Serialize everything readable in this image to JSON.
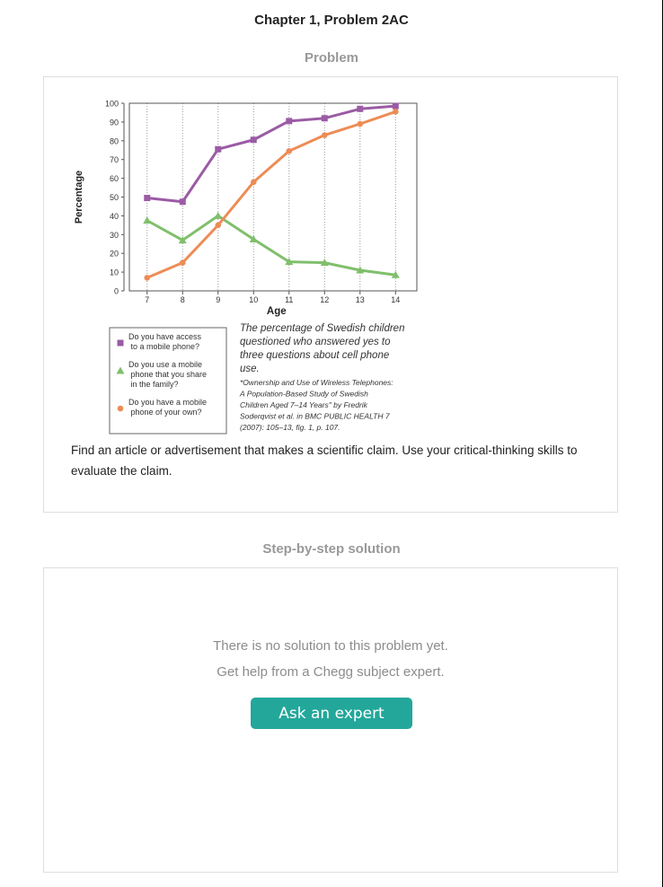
{
  "page": {
    "title": "Chapter 1, Problem 2AC",
    "problem_heading": "Problem",
    "solution_heading": "Step-by-step solution",
    "problem_text": "Find an article or advertisement that makes a scientific claim. Use your critical-thinking skills to evaluate the claim.",
    "no_solution_text": "There is no solution to this problem yet.",
    "get_help_text": "Get help from a Chegg subject expert.",
    "ask_button_label": "Ask an expert"
  },
  "colors": {
    "accent": "#23a79b",
    "series_access": "#9b5ba5",
    "series_share": "#80bf6c",
    "series_own": "#ed8c55"
  },
  "chart_data": {
    "type": "line",
    "xlabel": "Age",
    "ylabel": "Percentage",
    "x": [
      7,
      8,
      9,
      10,
      11,
      12,
      13,
      14
    ],
    "xlim": [
      6.5,
      14.6
    ],
    "ylim": [
      0,
      100
    ],
    "yticks": [
      0,
      10,
      20,
      30,
      40,
      50,
      60,
      70,
      80,
      90,
      100
    ],
    "grid": "vertical dotted lines at each age",
    "legend_position": "bottom-left",
    "series": [
      {
        "name": "Do you have access to a mobile phone?",
        "marker": "square",
        "color": "#9b5ba5",
        "values": [
          49.5,
          47.5,
          75.5,
          80.5,
          90.5,
          92,
          97,
          98.5
        ]
      },
      {
        "name": "Do you use a mobile phone that you share in the family?",
        "marker": "triangle",
        "color": "#80bf6c",
        "values": [
          37.5,
          27,
          40,
          27.5,
          15.5,
          15,
          11,
          8.5
        ]
      },
      {
        "name": "Do you have a mobile phone of your own?",
        "marker": "circle",
        "color": "#ed8c55",
        "values": [
          7,
          15,
          35,
          58,
          74.5,
          83,
          89,
          95.5
        ]
      }
    ],
    "caption_lines": [
      "The percentage of Swedish children",
      "questioned who answered yes to",
      "three questions about cell phone",
      "use."
    ],
    "source_lines": [
      "*Ownership and Use of Wireless Telephones:",
      "A Population-Based Study of Swedish",
      "Children Aged 7–14 Years\" by Fredrik",
      "Soderqvist et al. in BMC PUBLIC HEALTH 7",
      "(2007): 105–13, fig. 1, p. 107."
    ]
  }
}
